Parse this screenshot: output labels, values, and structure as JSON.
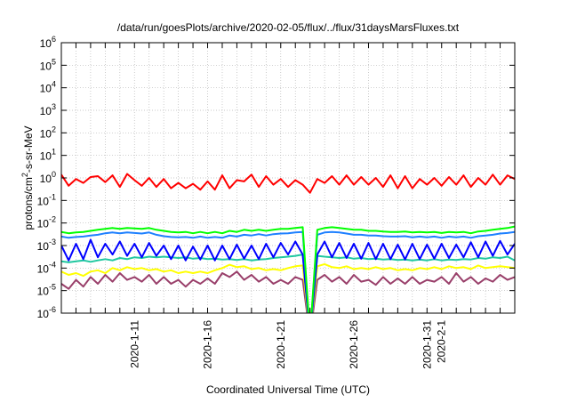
{
  "chart_data": {
    "type": "line",
    "title": "/data/run/goesPlots/archive/2020-02-05/flux/../flux/31daysMarsFluxes.txt",
    "xlabel": "Coordinated Universal Time (UTC)",
    "ylabel": {
      "pre": "protons/cm",
      "sup": "2",
      "post": "-s-sr-MeV"
    },
    "yscale": "log",
    "ylim": [
      1e-06,
      1000000.0
    ],
    "xlim_days": [
      0,
      31
    ],
    "x_origin_date": "2020-01-06",
    "grid": true,
    "y_ticks": [
      {
        "base": "10",
        "exp": "-6",
        "value": 1e-06
      },
      {
        "base": "10",
        "exp": "-5",
        "value": 1e-05
      },
      {
        "base": "10",
        "exp": "-4",
        "value": 0.0001
      },
      {
        "base": "10",
        "exp": "-3",
        "value": 0.001
      },
      {
        "base": "10",
        "exp": "-2",
        "value": 0.01
      },
      {
        "base": "10",
        "exp": "-1",
        "value": 0.1
      },
      {
        "base": "10",
        "exp": "0",
        "value": 1
      },
      {
        "base": "10",
        "exp": "1",
        "value": 10.0
      },
      {
        "base": "10",
        "exp": "2",
        "value": 100.0
      },
      {
        "base": "10",
        "exp": "3",
        "value": 1000.0
      },
      {
        "base": "10",
        "exp": "4",
        "value": 10000.0
      },
      {
        "base": "10",
        "exp": "5",
        "value": 100000.0
      },
      {
        "base": "10",
        "exp": "6",
        "value": 1000000.0
      }
    ],
    "x_ticks": [
      {
        "label": "2020-1-11",
        "day": 5
      },
      {
        "label": "2020-1-16",
        "day": 10
      },
      {
        "label": "2020-1-21",
        "day": 15
      },
      {
        "label": "2020-1-26",
        "day": 20
      },
      {
        "label": "2020-1-31",
        "day": 25
      },
      {
        "label": "2020-2-1",
        "day": 26
      }
    ],
    "series": [
      {
        "name": "red",
        "color": "#ff0000",
        "values": [
          1.4,
          0.45,
          0.9,
          0.6,
          1.1,
          1.2,
          0.65,
          1.3,
          0.4,
          1.5,
          0.8,
          0.45,
          1.0,
          0.4,
          0.9,
          0.35,
          0.6,
          0.35,
          0.55,
          0.3,
          0.7,
          0.3,
          1.3,
          0.35,
          0.8,
          0.7,
          1.4,
          0.4,
          1.2,
          0.5,
          0.9,
          0.4,
          0.8,
          0.5,
          0.22,
          0.9,
          0.6,
          1.2,
          0.5,
          1.3,
          0.5,
          1.1,
          0.5,
          1.0,
          0.4,
          1.3,
          0.35,
          1.2,
          0.35,
          0.9,
          0.5,
          1.0,
          0.45,
          1.1,
          0.5,
          1.3,
          0.4,
          1.0,
          0.5,
          1.4,
          0.5,
          1.3,
          0.9
        ]
      },
      {
        "name": "green",
        "color": "#00ff00",
        "values": [
          0.004,
          0.0035,
          0.0038,
          0.004,
          0.0045,
          0.005,
          0.0055,
          0.006,
          0.0055,
          0.006,
          0.0058,
          0.0055,
          0.006,
          0.005,
          0.0045,
          0.004,
          0.0038,
          0.004,
          0.0035,
          0.004,
          0.0035,
          0.004,
          0.0035,
          0.0045,
          0.004,
          0.005,
          0.0045,
          0.005,
          0.0045,
          0.005,
          0.0055,
          0.0055,
          0.006,
          0.0065,
          1e-07,
          0.005,
          0.006,
          0.0065,
          0.006,
          0.0055,
          0.005,
          0.005,
          0.0045,
          0.0045,
          0.0042,
          0.004,
          0.004,
          0.0042,
          0.0038,
          0.004,
          0.0038,
          0.004,
          0.0036,
          0.004,
          0.0038,
          0.004,
          0.0035,
          0.0042,
          0.0045,
          0.005,
          0.0055,
          0.006,
          0.007
        ]
      },
      {
        "name": "light-blue",
        "color": "#1e80ff",
        "values": [
          0.0025,
          0.0022,
          0.0024,
          0.0025,
          0.0028,
          0.003,
          0.0035,
          0.0038,
          0.0035,
          0.0038,
          0.0036,
          0.0034,
          0.0038,
          0.003,
          0.0026,
          0.0024,
          0.0023,
          0.0024,
          0.0022,
          0.0025,
          0.0022,
          0.0024,
          0.0022,
          0.0028,
          0.0025,
          0.003,
          0.0028,
          0.0032,
          0.0028,
          0.0032,
          0.0034,
          0.0035,
          0.0038,
          0.004,
          1e-07,
          0.003,
          0.0038,
          0.004,
          0.0038,
          0.0034,
          0.003,
          0.003,
          0.0028,
          0.0028,
          0.0026,
          0.0025,
          0.0025,
          0.0026,
          0.0023,
          0.0025,
          0.0023,
          0.0025,
          0.0022,
          0.0025,
          0.0023,
          0.0025,
          0.0022,
          0.0026,
          0.0028,
          0.003,
          0.0034,
          0.0036,
          0.004
        ]
      },
      {
        "name": "blue",
        "color": "#0000ff",
        "values": [
          0.001,
          0.00022,
          0.0012,
          0.00025,
          0.0018,
          0.0003,
          0.0012,
          0.0004,
          0.0015,
          0.00035,
          0.0012,
          0.0003,
          0.0013,
          0.00035,
          0.001,
          0.00025,
          0.001,
          0.00022,
          0.0009,
          0.00024,
          0.001,
          0.00022,
          0.001,
          0.00025,
          0.0011,
          0.00026,
          0.001,
          0.00025,
          0.0012,
          0.0003,
          0.0013,
          0.0004,
          0.0015,
          0.0004,
          1e-07,
          0.0004,
          0.0015,
          0.0003,
          0.0013,
          0.00028,
          0.0012,
          0.00026,
          0.0013,
          0.00025,
          0.0012,
          0.00025,
          0.0011,
          0.00024,
          0.0012,
          0.00025,
          0.0011,
          0.00026,
          0.0012,
          0.00028,
          0.0011,
          0.0003,
          0.0014,
          0.0003,
          0.0015,
          0.00035,
          0.0016,
          0.0004,
          0.0012
        ]
      },
      {
        "name": "teal",
        "color": "#20c8a0",
        "values": [
          0.0002,
          0.00018,
          0.0002,
          0.00022,
          0.00019,
          0.00022,
          0.00025,
          0.00022,
          0.00028,
          0.00025,
          0.0003,
          0.00028,
          0.00032,
          0.0003,
          0.00032,
          0.0003,
          0.00028,
          0.0003,
          0.00026,
          0.00028,
          0.00025,
          0.00026,
          0.00024,
          0.00025,
          0.00023,
          0.00025,
          0.00022,
          0.00024,
          0.00025,
          0.00028,
          0.0003,
          0.00032,
          0.00035,
          0.0004,
          1e-07,
          0.00035,
          0.00032,
          0.0003,
          0.00028,
          0.0003,
          0.00026,
          0.00028,
          0.00025,
          0.00026,
          0.00024,
          0.00025,
          0.00023,
          0.00024,
          0.00022,
          0.00024,
          0.00022,
          0.00025,
          0.00022,
          0.00024,
          0.00023,
          0.00025,
          0.00024,
          0.00028,
          0.00026,
          0.0003,
          0.00028,
          0.00032,
          0.00022
        ]
      },
      {
        "name": "yellow",
        "color": "#ffff00",
        "values": [
          7e-05,
          5e-05,
          6e-05,
          4.5e-05,
          7e-05,
          8e-05,
          6e-05,
          0.0001,
          8e-05,
          0.00011,
          9e-05,
          0.0001,
          8e-05,
          9e-05,
          7e-05,
          8e-05,
          6e-05,
          7e-05,
          6e-05,
          7e-05,
          6e-05,
          8e-05,
          0.0001,
          0.00014,
          0.00011,
          0.00012,
          9e-05,
          0.0001,
          8e-05,
          9e-05,
          8e-05,
          0.0001,
          0.00012,
          0.00013,
          1e-07,
          0.00012,
          0.00015,
          0.00011,
          0.0001,
          0.00012,
          9e-05,
          0.0001,
          9e-05,
          0.00011,
          9e-05,
          0.0001,
          8e-05,
          9e-05,
          8e-05,
          0.0001,
          9e-05,
          0.00011,
          9e-05,
          0.00012,
          0.0001,
          0.00011,
          9e-05,
          0.00013,
          0.0001,
          0.00011,
          0.00012,
          0.00011,
          0.0001
        ]
      },
      {
        "name": "maroon",
        "color": "#993f6a",
        "values": [
          2e-05,
          1.2e-05,
          3e-05,
          1.5e-05,
          4e-05,
          2e-05,
          5e-05,
          2.5e-05,
          6e-05,
          3e-05,
          4e-05,
          2.5e-05,
          5e-05,
          2e-05,
          4e-05,
          2e-05,
          3e-05,
          1.5e-05,
          3e-05,
          2e-05,
          3.5e-05,
          2e-05,
          6e-05,
          4e-05,
          7e-05,
          3e-05,
          5e-05,
          2.5e-05,
          4e-05,
          2e-05,
          3e-05,
          2e-05,
          4e-05,
          3e-05,
          1e-07,
          3e-05,
          5e-05,
          2.5e-05,
          4e-05,
          2e-05,
          5e-05,
          2.5e-05,
          3e-05,
          1.8e-05,
          4e-05,
          2e-05,
          3.5e-05,
          2e-05,
          4e-05,
          2e-05,
          3e-05,
          2.5e-05,
          4e-05,
          2e-05,
          6e-05,
          2.5e-05,
          4e-05,
          2e-05,
          3.5e-05,
          2.5e-05,
          5e-05,
          3e-05,
          4e-05
        ]
      }
    ]
  }
}
